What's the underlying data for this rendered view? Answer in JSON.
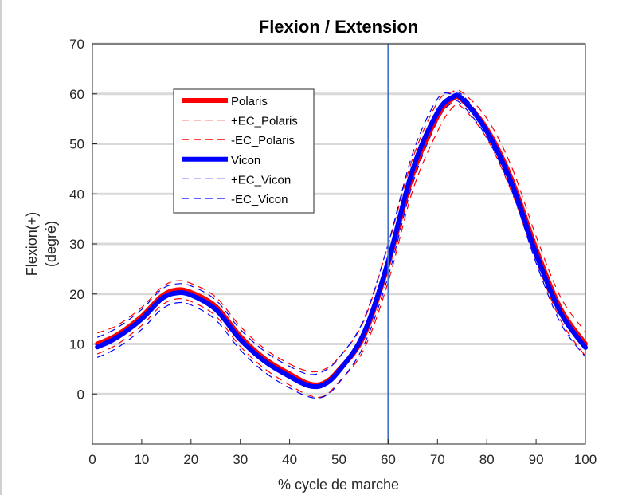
{
  "chart_data": {
    "type": "line",
    "title": "Flexion / Extension",
    "xlabel": "% cycle de marche",
    "ylabel": [
      "Flexion(+)",
      "(degré)"
    ],
    "xlim": [
      0,
      100
    ],
    "ylim": [
      -10,
      70
    ],
    "xticks": [
      0,
      10,
      20,
      30,
      40,
      50,
      60,
      70,
      80,
      90,
      100
    ],
    "yticks": [
      0,
      10,
      20,
      30,
      40,
      50,
      60,
      70
    ],
    "grid": "horizontal",
    "legend_placement": "top-left",
    "vline_x": 60,
    "x": [
      1,
      5,
      10,
      14,
      17,
      20,
      25,
      30,
      35,
      40,
      44,
      47,
      50,
      55,
      60,
      65,
      70,
      73,
      75,
      80,
      85,
      90,
      95,
      100
    ],
    "series": [
      {
        "name": "Polaris",
        "color": "#ff0000",
        "style": "solid",
        "width": 6,
        "values": [
          10,
          11.8,
          15.5,
          19.5,
          20.8,
          20.3,
          17.5,
          11.5,
          7.0,
          4.0,
          2.0,
          2.2,
          4.8,
          11.5,
          26.0,
          44.0,
          55.5,
          59.0,
          58.8,
          53.0,
          43.0,
          29.0,
          17.0,
          10.0
        ]
      },
      {
        "name": "+EC_Polaris",
        "color": "#ff0000",
        "style": "dashed",
        "width": 1.2,
        "values": [
          12.2,
          13.7,
          17.3,
          21.3,
          22.6,
          22.1,
          19.4,
          13.5,
          9.0,
          6.0,
          4.5,
          4.9,
          7.3,
          14.5,
          29.8,
          47.2,
          58.3,
          60.4,
          60.3,
          55.1,
          45.5,
          31.5,
          19.3,
          12.4
        ]
      },
      {
        "name": "-EC_Polaris",
        "color": "#ff0000",
        "style": "dashed",
        "width": 1.2,
        "values": [
          8.0,
          9.9,
          13.7,
          17.7,
          19.0,
          18.5,
          15.6,
          9.5,
          5.0,
          1.8,
          -0.3,
          -0.4,
          2.4,
          8.8,
          22.4,
          40.8,
          52.5,
          57.2,
          57.3,
          51.1,
          40.5,
          26.7,
          14.7,
          7.6
        ]
      },
      {
        "name": "Vicon",
        "color": "#0000ff",
        "style": "solid",
        "width": 6,
        "values": [
          9.4,
          11.3,
          15.0,
          19.0,
          20.2,
          19.8,
          16.9,
          10.9,
          6.5,
          3.5,
          1.6,
          1.9,
          4.6,
          12.0,
          26.5,
          45.0,
          56.3,
          59.3,
          59.0,
          52.5,
          42.2,
          28.0,
          16.2,
          9.3
        ]
      },
      {
        "name": "+EC_Vicon",
        "color": "#0000ff",
        "style": "dashed",
        "width": 1.2,
        "values": [
          11.3,
          13.2,
          16.9,
          20.9,
          22.0,
          21.6,
          18.8,
          12.9,
          8.5,
          5.5,
          3.9,
          4.6,
          7.2,
          14.8,
          30.0,
          48.2,
          59.0,
          60.0,
          59.8,
          53.4,
          43.0,
          29.0,
          17.4,
          10.6
        ]
      },
      {
        "name": "-EC_Vicon",
        "color": "#0000ff",
        "style": "dashed",
        "width": 1.2,
        "values": [
          7.3,
          9.2,
          12.9,
          16.9,
          18.2,
          17.8,
          14.8,
          8.8,
          4.3,
          1.2,
          -0.6,
          -0.5,
          2.2,
          9.6,
          23.5,
          42.2,
          54.6,
          58.2,
          57.8,
          51.3,
          40.8,
          26.2,
          14.1,
          7.4
        ]
      }
    ]
  }
}
